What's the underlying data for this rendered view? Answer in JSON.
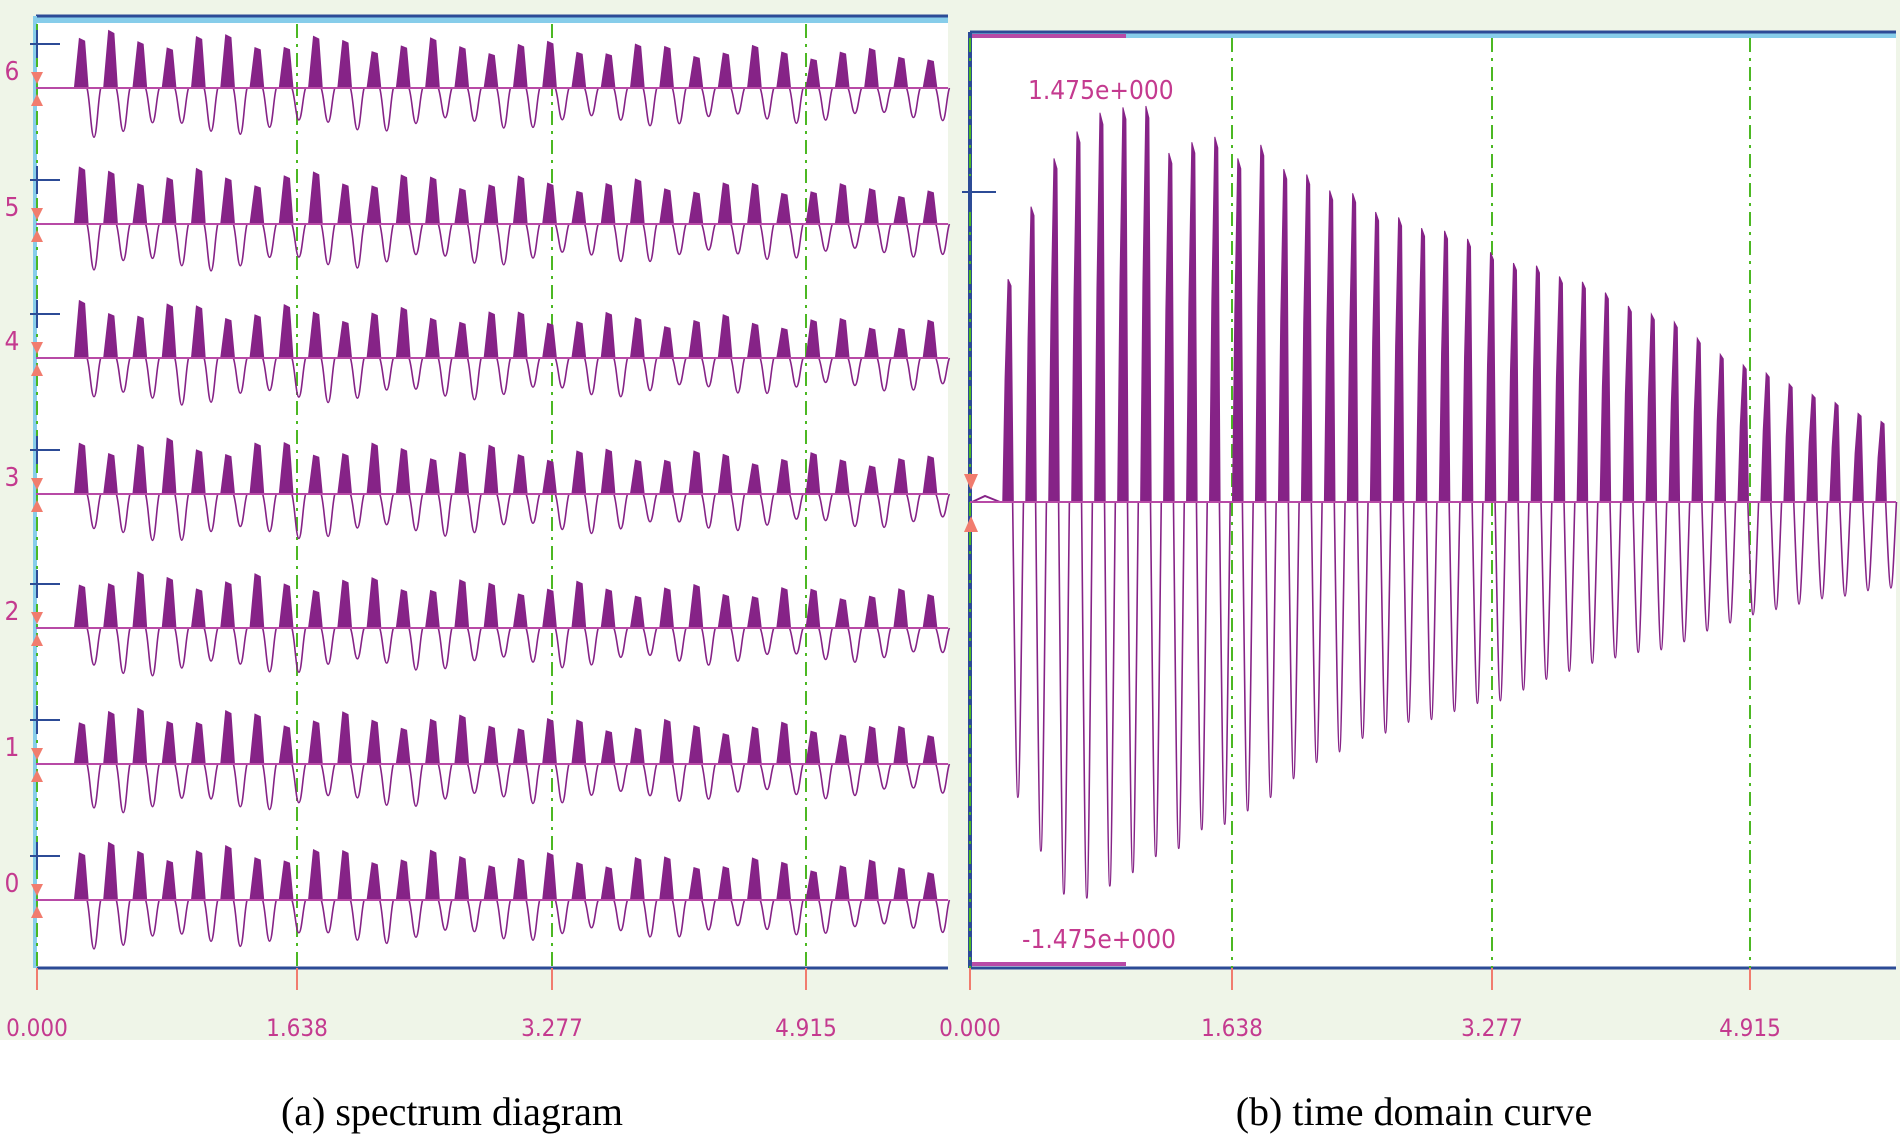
{
  "colors": {
    "background_panel": "#eff5e8",
    "plot_area": "#ffffff",
    "frame_top": "#87cdea",
    "frame_line": "#2c4b96",
    "signal": "#862387",
    "baseline": "#b84aa6",
    "grid": "#4cb823",
    "marker": "#f17c6e",
    "label": "#c43a8f"
  },
  "chart_data": [
    {
      "type": "line",
      "caption": "(a) spectrum diagram",
      "x_ticks": [
        "0.000",
        "1.638",
        "3.277",
        "4.915"
      ],
      "xlim": [
        0,
        6.0
      ],
      "channels": [
        "6",
        "5",
        "4",
        "3",
        "2",
        "1",
        "0"
      ],
      "series": [
        {
          "channel": "6",
          "num_pulses": 30,
          "peak_amplitude": 0.66,
          "trough_amplitude": -0.9
        },
        {
          "channel": "5",
          "num_pulses": 30,
          "peak_amplitude": 0.66,
          "trough_amplitude": -0.9
        },
        {
          "channel": "4",
          "num_pulses": 30,
          "peak_amplitude": 0.66,
          "trough_amplitude": -0.9
        },
        {
          "channel": "3",
          "num_pulses": 30,
          "peak_amplitude": 0.66,
          "trough_amplitude": -0.9
        },
        {
          "channel": "2",
          "num_pulses": 30,
          "peak_amplitude": 0.66,
          "trough_amplitude": -0.9
        },
        {
          "channel": "1",
          "num_pulses": 30,
          "peak_amplitude": 0.66,
          "trough_amplitude": -0.9
        },
        {
          "channel": "0",
          "num_pulses": 30,
          "peak_amplitude": 0.66,
          "trough_amplitude": -0.9
        }
      ],
      "grid": true
    },
    {
      "type": "line",
      "caption": "(b) time domain curve",
      "x_ticks": [
        "0.000",
        "1.638",
        "3.277",
        "4.915"
      ],
      "xlim": [
        0,
        6.0
      ],
      "ylim": [
        -1.475,
        1.475
      ],
      "y_max_label": "1.475e+000",
      "y_min_label": "-1.475e+000",
      "series": [
        {
          "name": "",
          "peaks": [
            0.83,
            1.1,
            1.28,
            1.38,
            1.45,
            1.47,
            1.475,
            1.3,
            1.34,
            1.36,
            1.28,
            1.33,
            1.24,
            1.22,
            1.16,
            1.15,
            1.08,
            1.06,
            1.02,
            1.01,
            0.98,
            0.93,
            0.89,
            0.88,
            0.84,
            0.82,
            0.78,
            0.73,
            0.7,
            0.67,
            0.61,
            0.55,
            0.51,
            0.48,
            0.44,
            0.4,
            0.37,
            0.33,
            0.3
          ],
          "troughs": [
            -1.1,
            -1.3,
            -1.46,
            -1.475,
            -1.43,
            -1.38,
            -1.32,
            -1.29,
            -1.22,
            -1.2,
            -1.15,
            -1.1,
            -1.03,
            -0.97,
            -0.93,
            -0.88,
            -0.86,
            -0.82,
            -0.81,
            -0.78,
            -0.75,
            -0.74,
            -0.7,
            -0.66,
            -0.63,
            -0.6,
            -0.58,
            -0.56,
            -0.55,
            -0.52,
            -0.48,
            -0.45,
            -0.42,
            -0.4,
            -0.38,
            -0.36,
            -0.35,
            -0.33,
            -0.32
          ]
        }
      ],
      "grid": true
    }
  ]
}
